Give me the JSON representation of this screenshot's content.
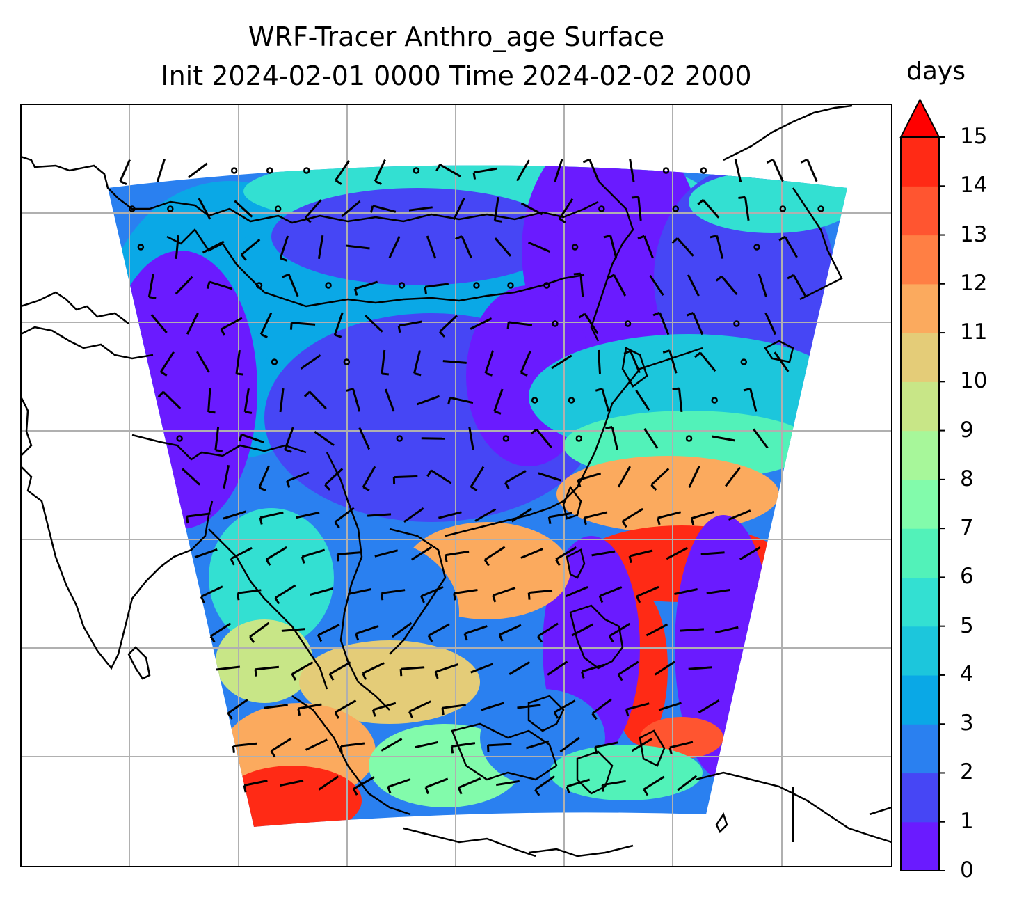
{
  "title": {
    "line1": "WRF-Tracer Anthro_age Surface",
    "line2": "Init 2024-02-01 0000 Time 2024-02-02 2000"
  },
  "colorbar": {
    "units": "days",
    "ticks": [
      "0",
      "1",
      "2",
      "3",
      "4",
      "5",
      "6",
      "7",
      "8",
      "9",
      "10",
      "11",
      "12",
      "13",
      "14",
      "15"
    ],
    "colors": [
      "#6a1bff",
      "#4646f5",
      "#2a80f0",
      "#0aa8e6",
      "#1cc6dc",
      "#33e0d2",
      "#52f2b9",
      "#82fbab",
      "#a7f79a",
      "#c8e687",
      "#e4cc78",
      "#fbaa5e",
      "#ff7f44",
      "#ff5530",
      "#ff2a15",
      "#ff0000"
    ],
    "extend": "max"
  },
  "map": {
    "field": "Anthro_age",
    "level": "Surface",
    "gridlines": true,
    "overlay": "wind barbs",
    "coastlines": true
  }
}
